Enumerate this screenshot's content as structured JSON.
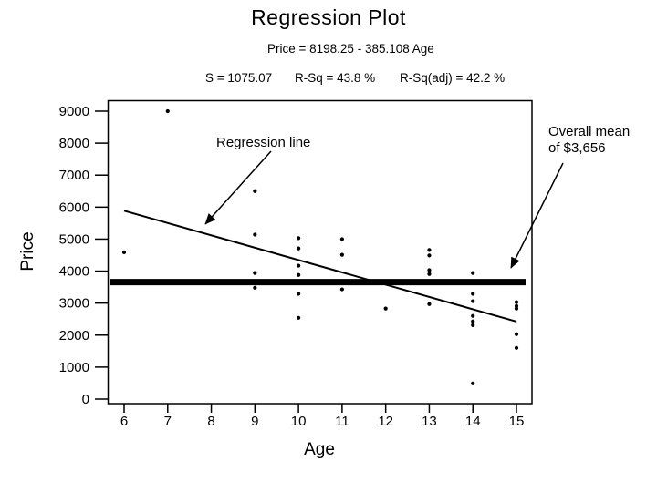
{
  "title": "Regression Plot",
  "equation": "Price = 8198.25 - 385.108 Age",
  "stats": {
    "s": "S = 1075.07",
    "rsq": "R-Sq = 43.8 %",
    "rsq_adj": "R-Sq(adj) = 42.2 %"
  },
  "annotations": {
    "regression_label": "Regression line",
    "mean_label_line1": "Overall mean",
    "mean_label_line2": "of $3,656"
  },
  "chart_data": {
    "type": "scatter",
    "title": "Regression Plot",
    "xlabel": "Age",
    "ylabel": "Price",
    "xticks": [
      6,
      7,
      8,
      9,
      10,
      11,
      12,
      13,
      14,
      15
    ],
    "yticks": [
      0,
      1000,
      2000,
      3000,
      4000,
      5000,
      6000,
      7000,
      8000,
      9000
    ],
    "xlim": [
      5.6,
      15.4
    ],
    "ylim": [
      0,
      9000
    ],
    "grid": false,
    "points": [
      [
        6,
        4590
      ],
      [
        7,
        9000
      ],
      [
        9,
        6500
      ],
      [
        9,
        5140
      ],
      [
        9,
        3940
      ],
      [
        9,
        3480
      ],
      [
        10,
        5030
      ],
      [
        10,
        4710
      ],
      [
        10,
        4170
      ],
      [
        10,
        3880
      ],
      [
        10,
        3290
      ],
      [
        10,
        2540
      ],
      [
        11,
        5000
      ],
      [
        11,
        4510
      ],
      [
        11,
        3430
      ],
      [
        12,
        2830
      ],
      [
        13,
        4660
      ],
      [
        13,
        4490
      ],
      [
        13,
        4030
      ],
      [
        13,
        3910
      ],
      [
        13,
        2970
      ],
      [
        14,
        3940
      ],
      [
        14,
        3290
      ],
      [
        14,
        3060
      ],
      [
        14,
        2600
      ],
      [
        14,
        2430
      ],
      [
        14,
        2310
      ],
      [
        14,
        490
      ],
      [
        15,
        3030
      ],
      [
        15,
        2910
      ],
      [
        15,
        2830
      ],
      [
        15,
        2030
      ],
      [
        15,
        1600
      ]
    ],
    "regression": {
      "intercept": 8198.25,
      "slope": -385.108,
      "x_start": 6,
      "x_end": 15
    },
    "mean_line": {
      "value": 3656
    },
    "colors": {
      "foreground": "#000000",
      "background": "#ffffff",
      "points": "#000000",
      "regression_line": "#000000",
      "mean_line": "#000000"
    }
  }
}
